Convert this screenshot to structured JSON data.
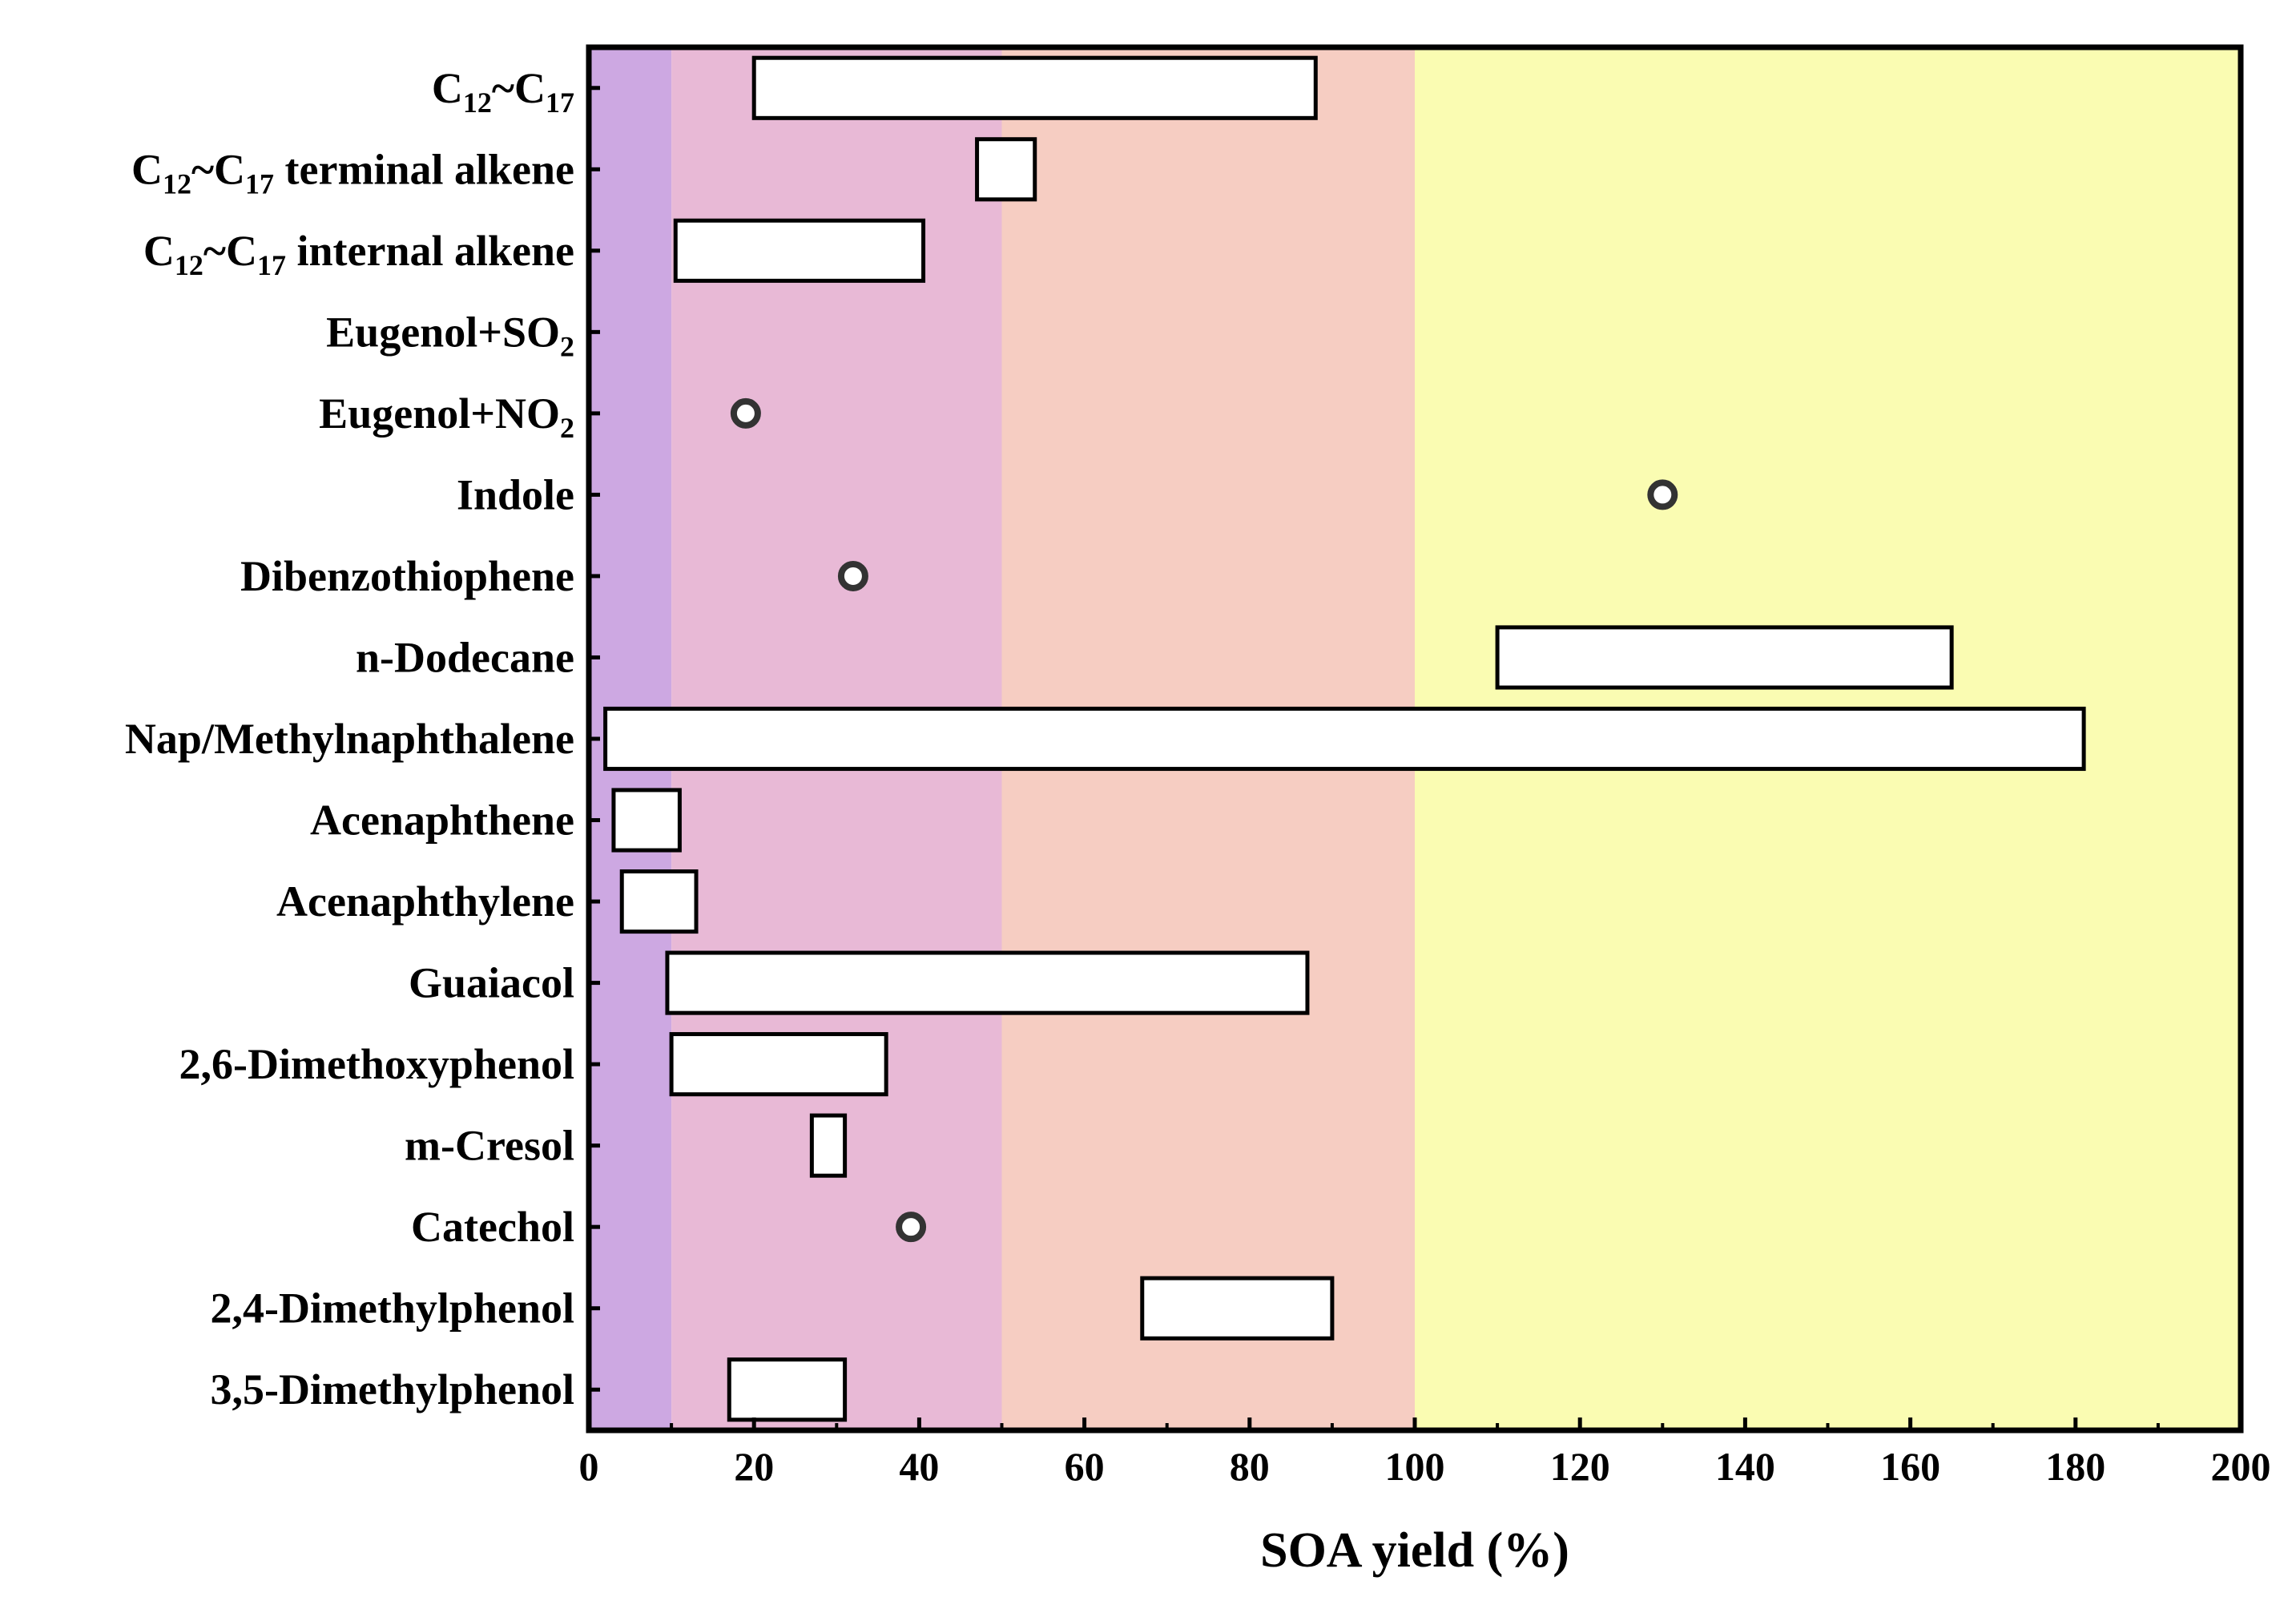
{
  "chart_data": {
    "type": "range-bar",
    "title": "",
    "xlabel": "SOA yield (%)",
    "ylabel": "",
    "xlim": [
      0,
      200
    ],
    "xticks": [
      0,
      20,
      40,
      60,
      80,
      100,
      120,
      140,
      160,
      180,
      200
    ],
    "grid": false,
    "legend": "none",
    "bands": [
      {
        "from": 0,
        "to": 10,
        "color": "#cda8e2"
      },
      {
        "from": 10,
        "to": 50,
        "color": "#e8b9d6"
      },
      {
        "from": 50,
        "to": 100,
        "color": "#f6cdc2"
      },
      {
        "from": 100,
        "to": 200,
        "color": "#fafcb2"
      }
    ],
    "colors": {
      "bar_fill": "#ffffff",
      "bar_stroke": "#000000",
      "marker_stroke": "#333333"
    },
    "categories": [
      {
        "id": "c12c17",
        "label": "C12~C17",
        "base": "C",
        "parts": [
          [
            "C",
            ""
          ],
          [
            "12",
            "sub"
          ],
          [
            "~C",
            ""
          ],
          [
            "17",
            "sub"
          ]
        ],
        "min": 20,
        "max": 88
      },
      {
        "id": "c12c17-terminal-alkene",
        "label": "C12~C17 terminal alkene",
        "base": "C",
        "parts": [
          [
            "C",
            ""
          ],
          [
            "12",
            "sub"
          ],
          [
            "~C",
            ""
          ],
          [
            "17",
            "sub"
          ],
          [
            " terminal alkene",
            ""
          ]
        ],
        "min": 47,
        "max": 54
      },
      {
        "id": "c12c17-internal-alkene",
        "label": "C12~C17 internal alkene",
        "base": "C",
        "parts": [
          [
            "C",
            ""
          ],
          [
            "12",
            "sub"
          ],
          [
            "~C",
            ""
          ],
          [
            "17",
            "sub"
          ],
          [
            " internal alkene",
            ""
          ]
        ],
        "min": 10.5,
        "max": 40.5
      },
      {
        "id": "eugenol-so2",
        "label": "Eugenol+SO2",
        "base": "Eugenol+SO",
        "parts": [
          [
            "Eugenol+SO",
            ""
          ],
          [
            "2",
            "sub"
          ]
        ]
      },
      {
        "id": "eugenol-no2",
        "label": "Eugenol+NO2",
        "base": "Eugenol+NO",
        "parts": [
          [
            "Eugenol+NO",
            ""
          ],
          [
            "2",
            "sub"
          ]
        ],
        "point": 19
      },
      {
        "id": "indole",
        "label": "Indole",
        "point": 130
      },
      {
        "id": "dibenzothiophene",
        "label": "Dibenzothiophene",
        "point": 32
      },
      {
        "id": "n-dodecane",
        "label": "n-Dodecane",
        "min": 110,
        "max": 165
      },
      {
        "id": "nap-methylnaphthalene",
        "label": "Nap/Methylnaphthalene",
        "min": 2,
        "max": 181
      },
      {
        "id": "acenaphthene",
        "label": "Acenaphthene",
        "min": 3,
        "max": 11
      },
      {
        "id": "acenaphthylene",
        "label": "Acenaphthylene",
        "min": 4,
        "max": 13
      },
      {
        "id": "guaiacol",
        "label": "Guaiacol",
        "min": 9.5,
        "max": 87
      },
      {
        "id": "2-6-dimethoxyphenol",
        "label": "2,6-Dimethoxyphenol",
        "min": 10,
        "max": 36
      },
      {
        "id": "m-cresol",
        "label": "m-Cresol",
        "min": 27,
        "max": 31
      },
      {
        "id": "catechol",
        "label": "Catechol",
        "point": 39
      },
      {
        "id": "2-4-dimethylphenol",
        "label": "2,4-Dimethylphenol",
        "min": 67,
        "max": 90
      },
      {
        "id": "3-5-dimethylphenol",
        "label": "3,5-Dimethylphenol",
        "min": 17,
        "max": 31
      }
    ]
  }
}
